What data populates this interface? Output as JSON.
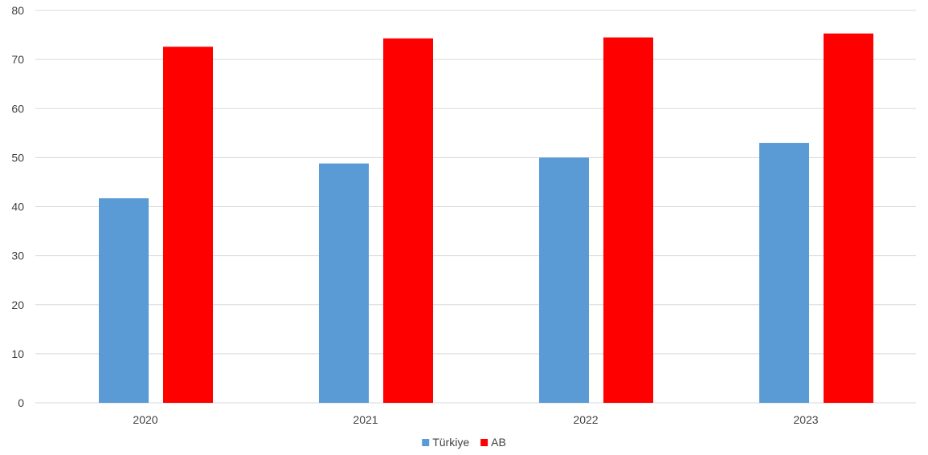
{
  "chart_data": {
    "type": "bar",
    "categories": [
      "2020",
      "2021",
      "2022",
      "2023"
    ],
    "series": [
      {
        "name": "Türkiye",
        "color": "#5b9bd5",
        "values": [
          41.7,
          48.8,
          50.0,
          53.0
        ]
      },
      {
        "name": "AB",
        "color": "#ff0000",
        "values": [
          72.6,
          74.3,
          74.5,
          75.3
        ]
      }
    ],
    "ylim": [
      0,
      80
    ],
    "yticks": [
      0,
      10,
      20,
      30,
      40,
      50,
      60,
      70,
      80
    ],
    "grid": true,
    "legend_position": "bottom",
    "gridline_color": "#d9d9d9"
  }
}
